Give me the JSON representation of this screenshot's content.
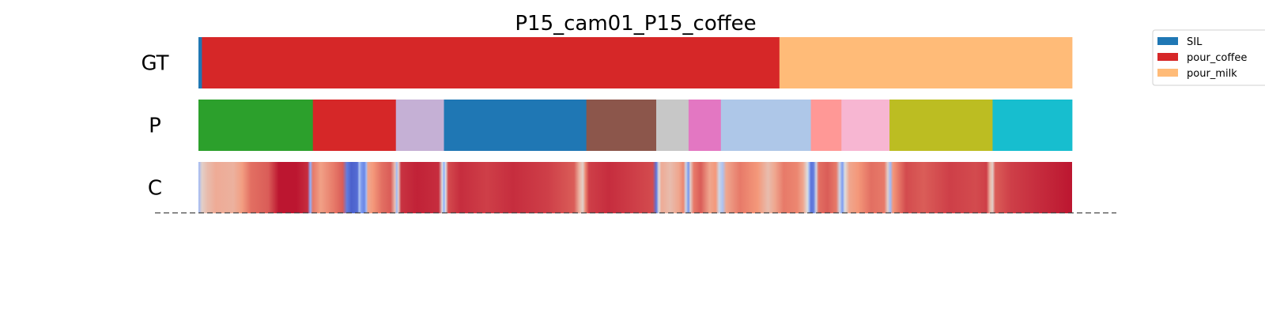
{
  "chart_data": {
    "type": "segmentation_barcode",
    "title": "P15_cam01_P15_coffee",
    "x_range": [
      0,
      1
    ],
    "rows": [
      {
        "label": "GT",
        "segments": [
          {
            "start": 0.0,
            "end": 0.004,
            "color": "#1f77b4"
          },
          {
            "start": 0.004,
            "end": 0.665,
            "color": "#d62728"
          },
          {
            "start": 0.665,
            "end": 1.0,
            "color": "#ffbb78"
          }
        ]
      },
      {
        "label": "P",
        "segments": [
          {
            "start": 0.0,
            "end": 0.131,
            "color": "#2ca02c"
          },
          {
            "start": 0.131,
            "end": 0.226,
            "color": "#d62728"
          },
          {
            "start": 0.226,
            "end": 0.281,
            "color": "#c5b0d5"
          },
          {
            "start": 0.281,
            "end": 0.444,
            "color": "#1f77b4"
          },
          {
            "start": 0.444,
            "end": 0.524,
            "color": "#8c564b"
          },
          {
            "start": 0.524,
            "end": 0.561,
            "color": "#c7c7c7"
          },
          {
            "start": 0.561,
            "end": 0.598,
            "color": "#e377c2"
          },
          {
            "start": 0.598,
            "end": 0.701,
            "color": "#aec7e8"
          },
          {
            "start": 0.701,
            "end": 0.736,
            "color": "#ff9896"
          },
          {
            "start": 0.736,
            "end": 0.791,
            "color": "#f7b6d2"
          },
          {
            "start": 0.791,
            "end": 0.909,
            "color": "#bcbd22"
          },
          {
            "start": 0.909,
            "end": 1.0,
            "color": "#17becf"
          }
        ]
      },
      {
        "label": "C",
        "colormap": "coolwarm",
        "confidence": [
          [
            0.0,
            0.3
          ],
          [
            0.004,
            0.55
          ],
          [
            0.01,
            0.62
          ],
          [
            0.02,
            0.68
          ],
          [
            0.04,
            0.66
          ],
          [
            0.05,
            0.73
          ],
          [
            0.06,
            0.82
          ],
          [
            0.08,
            0.85
          ],
          [
            0.092,
            0.97
          ],
          [
            0.112,
            0.97
          ],
          [
            0.125,
            0.93
          ],
          [
            0.128,
            0.25
          ],
          [
            0.131,
            0.8
          ],
          [
            0.14,
            0.72
          ],
          [
            0.155,
            0.8
          ],
          [
            0.165,
            0.85
          ],
          [
            0.17,
            0.12
          ],
          [
            0.175,
            0.05
          ],
          [
            0.182,
            0.08
          ],
          [
            0.184,
            0.35
          ],
          [
            0.187,
            0.18
          ],
          [
            0.19,
            0.15
          ],
          [
            0.192,
            0.3
          ],
          [
            0.194,
            0.7
          ],
          [
            0.2,
            0.75
          ],
          [
            0.21,
            0.82
          ],
          [
            0.22,
            0.85
          ],
          [
            0.225,
            0.6
          ],
          [
            0.227,
            0.3
          ],
          [
            0.229,
            0.55
          ],
          [
            0.232,
            0.92
          ],
          [
            0.25,
            0.95
          ],
          [
            0.275,
            0.93
          ],
          [
            0.279,
            0.5
          ],
          [
            0.281,
            0.25
          ],
          [
            0.283,
            0.5
          ],
          [
            0.286,
            0.88
          ],
          [
            0.3,
            0.93
          ],
          [
            0.33,
            0.9
          ],
          [
            0.36,
            0.93
          ],
          [
            0.4,
            0.9
          ],
          [
            0.43,
            0.85
          ],
          [
            0.436,
            0.65
          ],
          [
            0.44,
            0.55
          ],
          [
            0.443,
            0.78
          ],
          [
            0.447,
            0.9
          ],
          [
            0.47,
            0.93
          ],
          [
            0.5,
            0.9
          ],
          [
            0.52,
            0.88
          ],
          [
            0.524,
            0.1
          ],
          [
            0.527,
            0.5
          ],
          [
            0.53,
            0.68
          ],
          [
            0.54,
            0.62
          ],
          [
            0.55,
            0.7
          ],
          [
            0.555,
            0.78
          ],
          [
            0.558,
            0.45
          ],
          [
            0.561,
            0.18
          ],
          [
            0.563,
            0.55
          ],
          [
            0.567,
            0.8
          ],
          [
            0.575,
            0.85
          ],
          [
            0.585,
            0.7
          ],
          [
            0.592,
            0.75
          ],
          [
            0.596,
            0.45
          ],
          [
            0.6,
            0.35
          ],
          [
            0.604,
            0.7
          ],
          [
            0.62,
            0.8
          ],
          [
            0.64,
            0.75
          ],
          [
            0.652,
            0.62
          ],
          [
            0.66,
            0.7
          ],
          [
            0.67,
            0.8
          ],
          [
            0.685,
            0.78
          ],
          [
            0.692,
            0.7
          ],
          [
            0.697,
            0.5
          ],
          [
            0.699,
            0.3
          ],
          [
            0.701,
            0.1
          ],
          [
            0.704,
            0.12
          ],
          [
            0.707,
            0.45
          ],
          [
            0.71,
            0.82
          ],
          [
            0.72,
            0.85
          ],
          [
            0.73,
            0.8
          ],
          [
            0.734,
            0.45
          ],
          [
            0.737,
            0.2
          ],
          [
            0.74,
            0.5
          ],
          [
            0.745,
            0.7
          ],
          [
            0.755,
            0.75
          ],
          [
            0.77,
            0.82
          ],
          [
            0.785,
            0.8
          ],
          [
            0.789,
            0.55
          ],
          [
            0.792,
            0.3
          ],
          [
            0.795,
            0.75
          ],
          [
            0.81,
            0.88
          ],
          [
            0.83,
            0.85
          ],
          [
            0.86,
            0.9
          ],
          [
            0.89,
            0.88
          ],
          [
            0.902,
            0.9
          ],
          [
            0.906,
            0.65
          ],
          [
            0.909,
            0.55
          ],
          [
            0.912,
            0.85
          ],
          [
            0.93,
            0.9
          ],
          [
            0.96,
            0.93
          ],
          [
            0.98,
            0.95
          ],
          [
            1.0,
            0.97
          ]
        ]
      }
    ],
    "legend": {
      "placement": "top-right",
      "entries": [
        {
          "label": "SIL",
          "color": "#1f77b4"
        },
        {
          "label": "pour_coffee",
          "color": "#d62728"
        },
        {
          "label": "pour_milk",
          "color": "#ffbb78"
        }
      ]
    },
    "baseline_style": "dashed"
  }
}
